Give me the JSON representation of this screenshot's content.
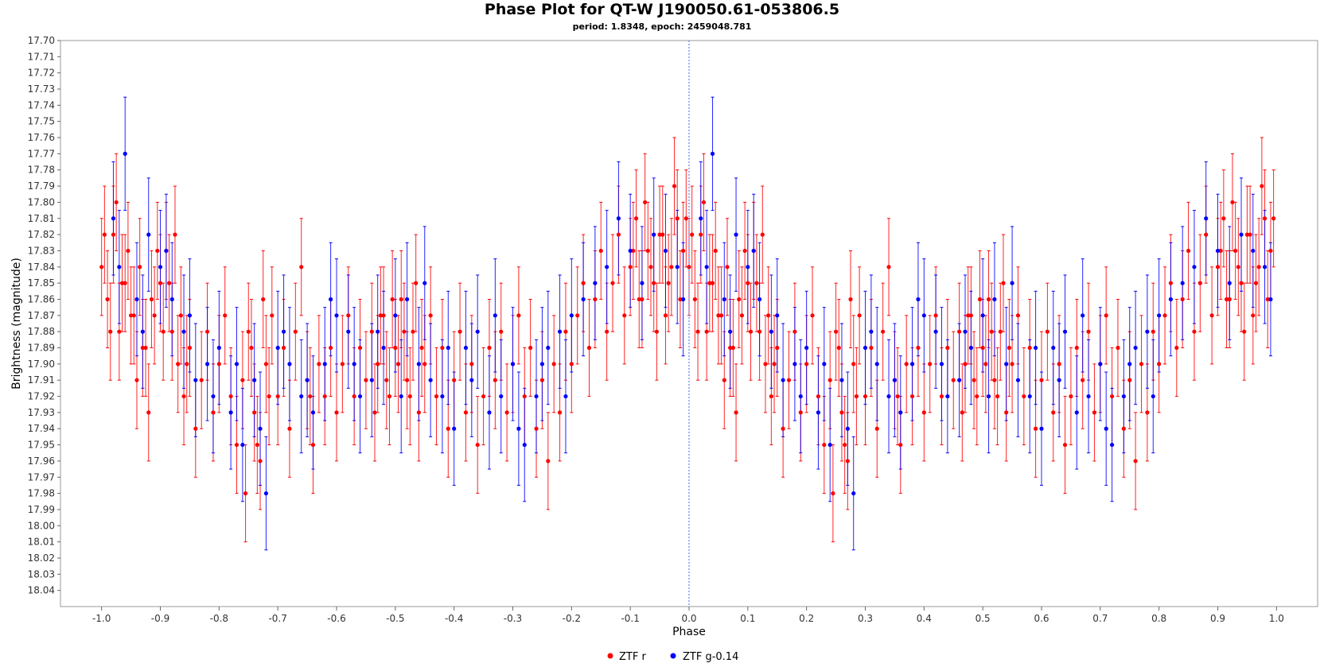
{
  "chart_data": {
    "type": "scatter",
    "title": "Phase Plot for QT-W J190050.61-053806.5",
    "subtitle": "period: 1.8348, epoch: 2459048.781",
    "xlabel": "Phase",
    "ylabel": "Brightness (magnitude)",
    "xlim": [
      -1.07,
      1.07
    ],
    "ylim": [
      17.7,
      18.05
    ],
    "y_inverted": true,
    "x_ticks": [
      "-1.0",
      "-0.9",
      "-0.8",
      "-0.7",
      "-0.6",
      "-0.5",
      "-0.4",
      "-0.3",
      "-0.2",
      "-0.1",
      "0.0",
      "0.1",
      "0.2",
      "0.3",
      "0.4",
      "0.5",
      "0.6",
      "0.7",
      "0.8",
      "0.9",
      "1.0"
    ],
    "y_ticks": [
      "17.70",
      "17.71",
      "17.72",
      "17.73",
      "17.74",
      "17.75",
      "17.76",
      "17.77",
      "17.78",
      "17.79",
      "17.80",
      "17.81",
      "17.82",
      "17.83",
      "17.84",
      "17.85",
      "17.86",
      "17.87",
      "17.88",
      "17.89",
      "17.90",
      "17.91",
      "17.92",
      "17.93",
      "17.94",
      "17.95",
      "17.96",
      "17.97",
      "17.98",
      "17.99",
      "18.00",
      "18.01",
      "18.02",
      "18.03",
      "18.04"
    ],
    "grid": false,
    "reference_line_x": 0.0,
    "legend_position": "bottom-center",
    "series": [
      {
        "name": "ZTF r",
        "color": "#ff0000",
        "error_bars": true,
        "phase_repeated": true,
        "typical_error": 0.03,
        "points": [
          [
            0.0,
            17.84
          ],
          [
            0.01,
            17.86
          ],
          [
            0.02,
            17.82
          ],
          [
            0.03,
            17.88
          ],
          [
            0.04,
            17.85
          ],
          [
            0.05,
            17.87
          ],
          [
            0.06,
            17.91
          ],
          [
            0.07,
            17.89
          ],
          [
            0.08,
            17.93
          ],
          [
            0.09,
            17.87
          ],
          [
            0.1,
            17.85
          ],
          [
            0.11,
            17.83
          ],
          [
            0.12,
            17.88
          ],
          [
            0.13,
            17.9
          ],
          [
            0.14,
            17.92
          ],
          [
            0.15,
            17.89
          ],
          [
            0.16,
            17.94
          ],
          [
            0.17,
            17.91
          ],
          [
            0.18,
            17.88
          ],
          [
            0.19,
            17.93
          ],
          [
            0.2,
            17.9
          ],
          [
            0.21,
            17.87
          ],
          [
            0.22,
            17.92
          ],
          [
            0.23,
            17.95
          ],
          [
            0.24,
            17.91
          ],
          [
            0.25,
            17.88
          ],
          [
            0.26,
            17.93
          ],
          [
            0.27,
            17.96
          ],
          [
            0.28,
            17.9
          ],
          [
            0.29,
            17.87
          ],
          [
            0.3,
            17.92
          ],
          [
            0.31,
            17.89
          ],
          [
            0.32,
            17.94
          ],
          [
            0.33,
            17.88
          ],
          [
            0.34,
            17.84
          ],
          [
            0.35,
            17.91
          ],
          [
            0.36,
            17.95
          ],
          [
            0.37,
            17.9
          ],
          [
            0.38,
            17.92
          ],
          [
            0.39,
            17.89
          ],
          [
            0.4,
            17.93
          ],
          [
            0.41,
            17.9
          ],
          [
            0.42,
            17.87
          ],
          [
            0.43,
            17.92
          ],
          [
            0.44,
            17.89
          ],
          [
            0.45,
            17.91
          ],
          [
            0.46,
            17.88
          ],
          [
            0.47,
            17.9
          ],
          [
            0.48,
            17.87
          ],
          [
            0.49,
            17.92
          ],
          [
            0.5,
            17.89
          ],
          [
            0.51,
            17.86
          ],
          [
            0.52,
            17.91
          ],
          [
            0.53,
            17.88
          ],
          [
            0.54,
            17.93
          ],
          [
            0.55,
            17.9
          ],
          [
            0.56,
            17.87
          ],
          [
            0.57,
            17.92
          ],
          [
            0.58,
            17.89
          ],
          [
            0.59,
            17.94
          ],
          [
            0.6,
            17.91
          ],
          [
            0.61,
            17.88
          ],
          [
            0.62,
            17.93
          ],
          [
            0.63,
            17.9
          ],
          [
            0.64,
            17.95
          ],
          [
            0.65,
            17.92
          ],
          [
            0.66,
            17.89
          ],
          [
            0.67,
            17.91
          ],
          [
            0.68,
            17.88
          ],
          [
            0.69,
            17.93
          ],
          [
            0.7,
            17.9
          ],
          [
            0.71,
            17.87
          ],
          [
            0.72,
            17.92
          ],
          [
            0.73,
            17.89
          ],
          [
            0.74,
            17.94
          ],
          [
            0.75,
            17.91
          ],
          [
            0.76,
            17.96
          ],
          [
            0.77,
            17.9
          ],
          [
            0.78,
            17.93
          ],
          [
            0.79,
            17.88
          ],
          [
            0.8,
            17.9
          ],
          [
            0.81,
            17.87
          ],
          [
            0.82,
            17.85
          ],
          [
            0.83,
            17.89
          ],
          [
            0.84,
            17.86
          ],
          [
            0.85,
            17.83
          ],
          [
            0.86,
            17.88
          ],
          [
            0.87,
            17.85
          ],
          [
            0.88,
            17.82
          ],
          [
            0.89,
            17.87
          ],
          [
            0.9,
            17.84
          ],
          [
            0.91,
            17.81
          ],
          [
            0.92,
            17.86
          ],
          [
            0.93,
            17.83
          ],
          [
            0.94,
            17.85
          ],
          [
            0.95,
            17.82
          ],
          [
            0.96,
            17.87
          ],
          [
            0.97,
            17.84
          ],
          [
            0.98,
            17.81
          ],
          [
            0.99,
            17.83
          ],
          [
            0.005,
            17.82
          ],
          [
            0.015,
            17.88
          ],
          [
            0.025,
            17.8
          ],
          [
            0.035,
            17.85
          ],
          [
            0.045,
            17.83
          ],
          [
            0.055,
            17.87
          ],
          [
            0.065,
            17.84
          ],
          [
            0.075,
            17.89
          ],
          [
            0.085,
            17.86
          ],
          [
            0.095,
            17.83
          ],
          [
            0.105,
            17.88
          ],
          [
            0.115,
            17.85
          ],
          [
            0.125,
            17.82
          ],
          [
            0.135,
            17.87
          ],
          [
            0.145,
            17.9
          ],
          [
            0.355,
            17.92
          ],
          [
            0.465,
            17.93
          ],
          [
            0.475,
            17.87
          ],
          [
            0.485,
            17.91
          ],
          [
            0.495,
            17.86
          ],
          [
            0.505,
            17.9
          ],
          [
            0.515,
            17.88
          ],
          [
            0.525,
            17.92
          ],
          [
            0.535,
            17.85
          ],
          [
            0.545,
            17.89
          ],
          [
            0.905,
            17.83
          ],
          [
            0.915,
            17.86
          ],
          [
            0.925,
            17.8
          ],
          [
            0.935,
            17.84
          ],
          [
            0.945,
            17.88
          ],
          [
            0.955,
            17.82
          ],
          [
            0.965,
            17.85
          ],
          [
            0.975,
            17.79
          ],
          [
            0.985,
            17.86
          ],
          [
            0.995,
            17.81
          ],
          [
            0.245,
            17.98
          ],
          [
            0.255,
            17.89
          ],
          [
            0.265,
            17.95
          ],
          [
            0.275,
            17.86
          ],
          [
            0.285,
            17.92
          ]
        ]
      },
      {
        "name": "ZTF g-0.14",
        "color": "#0000ff",
        "error_bars": true,
        "phase_repeated": true,
        "typical_error": 0.035,
        "points": [
          [
            0.02,
            17.81
          ],
          [
            0.06,
            17.86
          ],
          [
            0.1,
            17.84
          ],
          [
            0.14,
            17.88
          ],
          [
            0.18,
            17.9
          ],
          [
            0.22,
            17.93
          ],
          [
            0.26,
            17.91
          ],
          [
            0.3,
            17.89
          ],
          [
            0.34,
            17.92
          ],
          [
            0.38,
            17.9
          ],
          [
            0.42,
            17.88
          ],
          [
            0.46,
            17.91
          ],
          [
            0.5,
            17.87
          ],
          [
            0.54,
            17.9
          ],
          [
            0.58,
            17.92
          ],
          [
            0.62,
            17.89
          ],
          [
            0.66,
            17.93
          ],
          [
            0.7,
            17.9
          ],
          [
            0.74,
            17.92
          ],
          [
            0.78,
            17.88
          ],
          [
            0.82,
            17.86
          ],
          [
            0.86,
            17.84
          ],
          [
            0.9,
            17.83
          ],
          [
            0.94,
            17.82
          ],
          [
            0.98,
            17.84
          ],
          [
            0.04,
            17.77
          ],
          [
            0.08,
            17.82
          ],
          [
            0.12,
            17.86
          ],
          [
            0.16,
            17.91
          ],
          [
            0.2,
            17.89
          ],
          [
            0.24,
            17.95
          ],
          [
            0.28,
            17.98
          ],
          [
            0.32,
            17.9
          ],
          [
            0.36,
            17.93
          ],
          [
            0.4,
            17.87
          ],
          [
            0.44,
            17.92
          ],
          [
            0.48,
            17.89
          ],
          [
            0.52,
            17.86
          ],
          [
            0.56,
            17.91
          ],
          [
            0.6,
            17.94
          ],
          [
            0.64,
            17.88
          ],
          [
            0.68,
            17.92
          ],
          [
            0.72,
            17.95
          ],
          [
            0.76,
            17.89
          ],
          [
            0.8,
            17.87
          ],
          [
            0.84,
            17.85
          ],
          [
            0.88,
            17.81
          ],
          [
            0.92,
            17.85
          ],
          [
            0.96,
            17.83
          ],
          [
            0.99,
            17.86
          ],
          [
            0.03,
            17.84
          ],
          [
            0.07,
            17.88
          ],
          [
            0.11,
            17.83
          ],
          [
            0.15,
            17.87
          ],
          [
            0.19,
            17.92
          ],
          [
            0.23,
            17.9
          ],
          [
            0.27,
            17.94
          ],
          [
            0.31,
            17.88
          ],
          [
            0.35,
            17.91
          ],
          [
            0.39,
            17.86
          ],
          [
            0.43,
            17.9
          ],
          [
            0.47,
            17.88
          ],
          [
            0.51,
            17.92
          ],
          [
            0.55,
            17.85
          ],
          [
            0.59,
            17.89
          ],
          [
            0.63,
            17.91
          ],
          [
            0.67,
            17.87
          ],
          [
            0.71,
            17.94
          ],
          [
            0.75,
            17.9
          ],
          [
            0.79,
            17.92
          ]
        ]
      }
    ]
  }
}
